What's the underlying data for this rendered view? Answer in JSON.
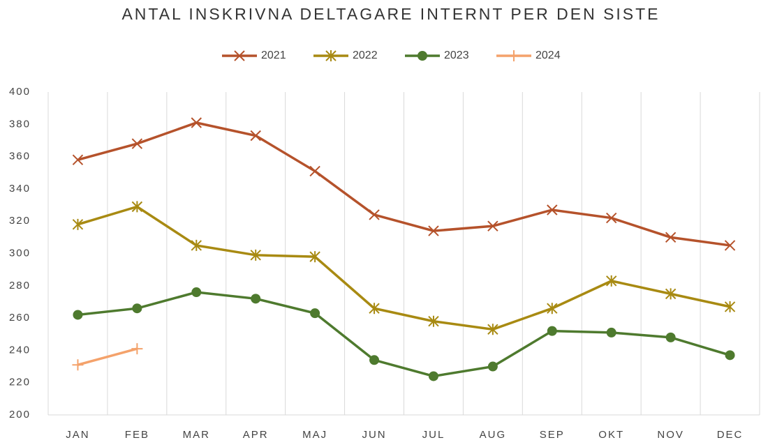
{
  "chart_data": {
    "type": "line",
    "title": "ANTAL INSKRIVNA DELTAGARE INTERNT PER DEN SISTE",
    "categories": [
      "JAN",
      "FEB",
      "MAR",
      "APR",
      "MAJ",
      "JUN",
      "JUL",
      "AUG",
      "SEP",
      "OKT",
      "NOV",
      "DEC"
    ],
    "series": [
      {
        "name": "2021",
        "color": "#b5522b",
        "marker": "x",
        "values": [
          358,
          368,
          381,
          373,
          351,
          324,
          314,
          317,
          327,
          322,
          310,
          305
        ]
      },
      {
        "name": "2022",
        "color": "#a88a12",
        "marker": "asterisk",
        "values": [
          318,
          329,
          305,
          299,
          298,
          266,
          258,
          253,
          266,
          283,
          275,
          267
        ]
      },
      {
        "name": "2023",
        "color": "#4e7a2e",
        "marker": "circle",
        "values": [
          262,
          266,
          276,
          272,
          263,
          234,
          224,
          230,
          252,
          251,
          248,
          237
        ]
      },
      {
        "name": "2024",
        "color": "#f4a26b",
        "marker": "plus",
        "values": [
          231,
          241,
          null,
          null,
          null,
          null,
          null,
          null,
          null,
          null,
          null,
          null
        ]
      }
    ],
    "ylim": [
      200,
      400
    ],
    "yticks": [
      200,
      220,
      240,
      260,
      280,
      300,
      320,
      340,
      360,
      380,
      400
    ],
    "legend": "top",
    "grid": "vertical"
  }
}
